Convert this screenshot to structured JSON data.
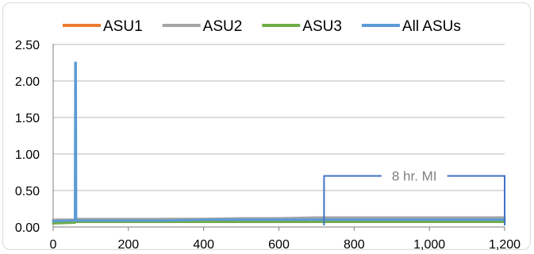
{
  "chart_data": {
    "type": "line",
    "title": "",
    "xlabel": "",
    "ylabel": "",
    "xlim": [
      0,
      1200
    ],
    "ylim": [
      0,
      2.5
    ],
    "x_ticks": [
      0,
      200,
      400,
      600,
      800,
      1000,
      1200
    ],
    "x_tick_labels": [
      "0",
      "200",
      "400",
      "600",
      "800",
      "1,000",
      "1,200"
    ],
    "y_ticks": [
      0,
      0.5,
      1.0,
      1.5,
      2.0,
      2.5
    ],
    "y_tick_labels": [
      "0.00",
      "0.50",
      "1.00",
      "1.50",
      "2.00",
      "2.50"
    ],
    "grid": "horizontal",
    "legend_position": "top",
    "series": [
      {
        "name": "ASU1",
        "color": "#ED7D31",
        "x": [
          0,
          58,
          59,
          60,
          61,
          62,
          63,
          100,
          200,
          300,
          400,
          500,
          600,
          700,
          800,
          900,
          1000,
          1100,
          1200
        ],
        "y": [
          0.09,
          0.09,
          0.11,
          0.11,
          0.1,
          0.11,
          0.1,
          0.1,
          0.1,
          0.11,
          0.11,
          0.11,
          0.12,
          0.12,
          0.13,
          0.13,
          0.13,
          0.13,
          0.13
        ]
      },
      {
        "name": "ASU2",
        "color": "#A5A5A5",
        "x": [
          0,
          58,
          59,
          60,
          61,
          62,
          63,
          100,
          200,
          300,
          400,
          500,
          600,
          700,
          800,
          900,
          1000,
          1100,
          1200
        ],
        "y": [
          0.1,
          0.1,
          0.12,
          0.12,
          0.11,
          0.11,
          0.11,
          0.11,
          0.11,
          0.11,
          0.11,
          0.12,
          0.12,
          0.13,
          0.13,
          0.13,
          0.13,
          0.13,
          0.13
        ]
      },
      {
        "name": "ASU3",
        "color": "#70AD47",
        "x": [
          0,
          58,
          59,
          60,
          61,
          62,
          63,
          100,
          200,
          300,
          400,
          500,
          600,
          700,
          800,
          900,
          1000,
          1100,
          1200
        ],
        "y": [
          0.05,
          0.06,
          0.07,
          0.07,
          0.07,
          0.07,
          0.07,
          0.07,
          0.07,
          0.07,
          0.07,
          0.07,
          0.07,
          0.07,
          0.07,
          0.07,
          0.07,
          0.07,
          0.07
        ]
      },
      {
        "name": "All ASUs",
        "color": "#5B9BD5",
        "x": [
          0,
          58,
          59,
          60,
          61,
          62,
          63,
          100,
          200,
          300,
          400,
          500,
          600,
          700,
          800,
          900,
          1000,
          1100,
          1200
        ],
        "y": [
          0.08,
          0.09,
          2.25,
          2.25,
          0.1,
          0.09,
          0.09,
          0.09,
          0.09,
          0.09,
          0.1,
          0.1,
          0.1,
          0.1,
          0.1,
          0.1,
          0.1,
          0.1,
          0.1
        ]
      }
    ],
    "annotations": [
      {
        "text": "8 hr. MI",
        "color": "#808080",
        "line_color": "#4472C4",
        "x_start": 720,
        "x_end": 1200,
        "y": 0.7
      }
    ]
  }
}
